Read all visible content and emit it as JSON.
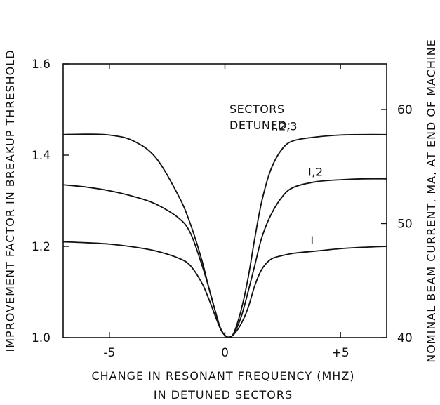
{
  "chart_data": {
    "type": "line",
    "xlabel": "CHANGE IN RESONANT FREQUENCY (MHZ)",
    "xlabel_line2": "IN DETUNED SECTORS",
    "ylabel": "IMPROVEMENT FACTOR IN BREAKUP THRESHOLD",
    "y2label": "NOMINAL BEAM CURRENT, MA, AT END OF MACHINE",
    "xlim": [
      -7,
      7
    ],
    "ylim": [
      1.0,
      1.6
    ],
    "y2lim": [
      40,
      64
    ],
    "x_ticks": [
      -5,
      0,
      5
    ],
    "x_tick_labels": [
      "-5",
      "0",
      "+5"
    ],
    "y_ticks": [
      1.0,
      1.2,
      1.4,
      1.6
    ],
    "y_tick_labels": [
      "1.0",
      "1.2",
      "1.4",
      "1.6"
    ],
    "y2_ticks": [
      40,
      50,
      60
    ],
    "y2_tick_labels": [
      "40",
      "50",
      "60"
    ],
    "grid": false,
    "annotation": {
      "line1": "SECTORS",
      "line2": "DETUNED:"
    },
    "series": [
      {
        "name": "I",
        "x": [
          -7,
          -6,
          -5,
          -4,
          -3,
          -2,
          -1.5,
          -1,
          -0.7,
          -0.4,
          -0.2,
          0,
          0.2,
          0.4,
          0.7,
          1,
          1.3,
          1.6,
          2,
          2.5,
          3,
          4,
          5,
          6,
          7
        ],
        "y": [
          1.21,
          1.208,
          1.205,
          1.199,
          1.19,
          1.174,
          1.158,
          1.12,
          1.085,
          1.045,
          1.02,
          1.005,
          1.001,
          1.008,
          1.03,
          1.065,
          1.115,
          1.15,
          1.172,
          1.18,
          1.185,
          1.19,
          1.195,
          1.198,
          1.2
        ]
      },
      {
        "name": "I,2",
        "x": [
          -7,
          -6,
          -5,
          -4,
          -3,
          -2,
          -1.5,
          -1,
          -0.7,
          -0.4,
          -0.2,
          0,
          0.2,
          0.4,
          0.7,
          1,
          1.3,
          1.6,
          2,
          2.5,
          3,
          4,
          5,
          6,
          7
        ],
        "y": [
          1.335,
          1.33,
          1.322,
          1.31,
          1.293,
          1.262,
          1.23,
          1.16,
          1.11,
          1.055,
          1.022,
          1.005,
          1.001,
          1.01,
          1.045,
          1.1,
          1.16,
          1.22,
          1.27,
          1.31,
          1.33,
          1.342,
          1.346,
          1.348,
          1.348
        ]
      },
      {
        "name": "I,2,3",
        "x": [
          -7,
          -6,
          -5,
          -4,
          -3,
          -2,
          -1.5,
          -1,
          -0.7,
          -0.4,
          -0.2,
          0,
          0.2,
          0.4,
          0.7,
          1,
          1.3,
          1.6,
          2,
          2.5,
          3,
          4,
          5,
          6,
          7
        ],
        "y": [
          1.445,
          1.446,
          1.444,
          1.432,
          1.395,
          1.31,
          1.25,
          1.17,
          1.11,
          1.055,
          1.02,
          1.005,
          1.001,
          1.012,
          1.06,
          1.13,
          1.22,
          1.3,
          1.37,
          1.415,
          1.432,
          1.44,
          1.444,
          1.445,
          1.445
        ]
      }
    ]
  }
}
